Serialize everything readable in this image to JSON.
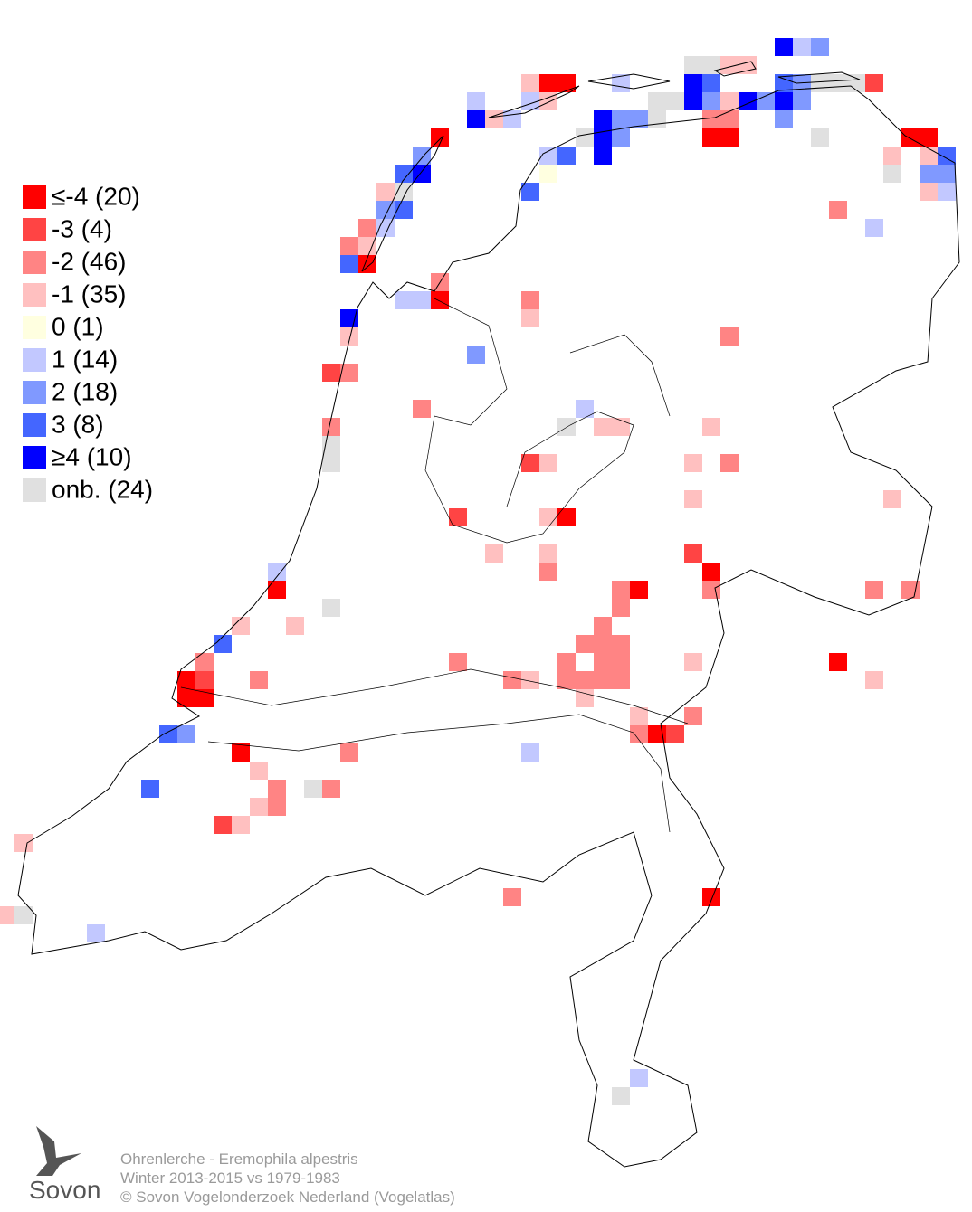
{
  "map": {
    "legend": [
      {
        "label": "≤-4 (20)",
        "color": "#ff0000"
      },
      {
        "label": "-3 (4)",
        "color": "#ff4444"
      },
      {
        "label": "-2 (46)",
        "color": "#ff8484"
      },
      {
        "label": "-1 (35)",
        "color": "#ffc0c0"
      },
      {
        "label": " 0 (1)",
        "color": "#ffffe0"
      },
      {
        "label": " 1 (14)",
        "color": "#c2c8ff"
      },
      {
        "label": " 2 (18)",
        "color": "#8099ff"
      },
      {
        "label": " 3 (8)",
        "color": "#4466ff"
      },
      {
        "label": "≥4 (10)",
        "color": "#0000ff"
      },
      {
        "label": "onb. (24)",
        "color": "#e0e0e0"
      }
    ],
    "cells": [
      [
        42,
        2,
        8
      ],
      [
        43,
        2,
        5
      ],
      [
        44,
        2,
        6
      ],
      [
        37,
        3,
        9
      ],
      [
        38,
        3,
        9
      ],
      [
        39,
        3,
        3
      ],
      [
        40,
        3,
        3
      ],
      [
        28,
        4,
        3
      ],
      [
        29,
        4,
        0
      ],
      [
        30,
        4,
        0
      ],
      [
        33,
        4,
        5
      ],
      [
        37,
        4,
        8
      ],
      [
        38,
        4,
        7
      ],
      [
        42,
        4,
        7
      ],
      [
        43,
        4,
        6
      ],
      [
        44,
        4,
        9
      ],
      [
        45,
        4,
        9
      ],
      [
        46,
        4,
        9
      ],
      [
        47,
        4,
        1
      ],
      [
        25,
        5,
        5
      ],
      [
        28,
        5,
        5
      ],
      [
        29,
        5,
        3
      ],
      [
        35,
        5,
        9
      ],
      [
        36,
        5,
        9
      ],
      [
        37,
        5,
        8
      ],
      [
        38,
        5,
        6
      ],
      [
        39,
        5,
        3
      ],
      [
        40,
        5,
        8
      ],
      [
        41,
        5,
        6
      ],
      [
        42,
        5,
        8
      ],
      [
        43,
        5,
        6
      ],
      [
        25,
        6,
        8
      ],
      [
        26,
        6,
        3
      ],
      [
        27,
        6,
        5
      ],
      [
        32,
        6,
        8
      ],
      [
        33,
        6,
        6
      ],
      [
        34,
        6,
        6
      ],
      [
        35,
        6,
        9
      ],
      [
        38,
        6,
        2
      ],
      [
        39,
        6,
        2
      ],
      [
        42,
        6,
        6
      ],
      [
        23,
        7,
        0
      ],
      [
        31,
        7,
        9
      ],
      [
        32,
        7,
        8
      ],
      [
        33,
        7,
        6
      ],
      [
        38,
        7,
        0
      ],
      [
        39,
        7,
        0
      ],
      [
        44,
        7,
        9
      ],
      [
        49,
        7,
        0
      ],
      [
        50,
        7,
        0
      ],
      [
        22,
        8,
        6
      ],
      [
        29,
        8,
        5
      ],
      [
        30,
        8,
        7
      ],
      [
        32,
        8,
        8
      ],
      [
        48,
        8,
        3
      ],
      [
        50,
        8,
        3
      ],
      [
        51,
        8,
        7
      ],
      [
        21,
        9,
        7
      ],
      [
        22,
        9,
        8
      ],
      [
        29,
        9,
        4
      ],
      [
        48,
        9,
        9
      ],
      [
        50,
        9,
        6
      ],
      [
        51,
        9,
        6
      ],
      [
        20,
        10,
        3
      ],
      [
        21,
        10,
        9
      ],
      [
        28,
        10,
        7
      ],
      [
        50,
        10,
        3
      ],
      [
        51,
        10,
        5
      ],
      [
        20,
        11,
        6
      ],
      [
        21,
        11,
        7
      ],
      [
        45,
        11,
        2
      ],
      [
        19,
        12,
        2
      ],
      [
        20,
        12,
        5
      ],
      [
        47,
        12,
        5
      ],
      [
        18,
        13,
        2
      ],
      [
        19,
        13,
        3
      ],
      [
        18,
        14,
        7
      ],
      [
        19,
        14,
        0
      ],
      [
        23,
        15,
        2
      ],
      [
        21,
        16,
        5
      ],
      [
        22,
        16,
        5
      ],
      [
        23,
        16,
        0
      ],
      [
        28,
        16,
        2
      ],
      [
        28,
        17,
        3
      ],
      [
        18,
        17,
        8
      ],
      [
        18,
        18,
        3
      ],
      [
        39,
        18,
        2
      ],
      [
        25,
        19,
        6
      ],
      [
        17,
        20,
        1
      ],
      [
        18,
        20,
        2
      ],
      [
        22,
        22,
        2
      ],
      [
        31,
        22,
        5
      ],
      [
        17,
        23,
        2
      ],
      [
        30,
        23,
        9
      ],
      [
        32,
        23,
        3
      ],
      [
        33,
        23,
        3
      ],
      [
        38,
        23,
        3
      ],
      [
        17,
        24,
        9
      ],
      [
        17,
        25,
        9
      ],
      [
        28,
        25,
        1
      ],
      [
        29,
        25,
        3
      ],
      [
        37,
        25,
        3
      ],
      [
        39,
        25,
        2
      ],
      [
        37,
        27,
        3
      ],
      [
        48,
        27,
        3
      ],
      [
        24,
        28,
        1
      ],
      [
        29,
        28,
        3
      ],
      [
        30,
        28,
        0
      ],
      [
        26,
        30,
        3
      ],
      [
        29,
        30,
        3
      ],
      [
        37,
        30,
        1
      ],
      [
        29,
        31,
        2
      ],
      [
        38,
        31,
        0
      ],
      [
        14,
        31,
        5
      ],
      [
        14,
        32,
        0
      ],
      [
        33,
        32,
        2
      ],
      [
        34,
        32,
        0
      ],
      [
        38,
        32,
        2
      ],
      [
        47,
        32,
        2
      ],
      [
        49,
        32,
        2
      ],
      [
        17,
        33,
        9
      ],
      [
        33,
        33,
        2
      ],
      [
        12,
        34,
        3
      ],
      [
        15,
        34,
        3
      ],
      [
        32,
        34,
        2
      ],
      [
        11,
        35,
        7
      ],
      [
        31,
        35,
        2
      ],
      [
        32,
        35,
        2
      ],
      [
        33,
        35,
        2
      ],
      [
        10,
        36,
        2
      ],
      [
        24,
        36,
        2
      ],
      [
        30,
        36,
        2
      ],
      [
        32,
        36,
        2
      ],
      [
        33,
        36,
        2
      ],
      [
        37,
        36,
        3
      ],
      [
        45,
        36,
        0
      ],
      [
        9,
        37,
        0
      ],
      [
        10,
        37,
        1
      ],
      [
        13,
        37,
        2
      ],
      [
        27,
        37,
        2
      ],
      [
        28,
        37,
        3
      ],
      [
        30,
        37,
        2
      ],
      [
        31,
        37,
        2
      ],
      [
        32,
        37,
        2
      ],
      [
        33,
        37,
        2
      ],
      [
        47,
        37,
        3
      ],
      [
        9,
        38,
        0
      ],
      [
        10,
        38,
        0
      ],
      [
        31,
        38,
        3
      ],
      [
        34,
        39,
        3
      ],
      [
        37,
        39,
        2
      ],
      [
        8,
        40,
        7
      ],
      [
        9,
        40,
        6
      ],
      [
        34,
        40,
        2
      ],
      [
        35,
        40,
        0
      ],
      [
        36,
        40,
        1
      ],
      [
        12,
        41,
        0
      ],
      [
        18,
        41,
        2
      ],
      [
        28,
        41,
        5
      ],
      [
        13,
        42,
        3
      ],
      [
        7,
        43,
        7
      ],
      [
        14,
        43,
        2
      ],
      [
        16,
        43,
        9
      ],
      [
        17,
        43,
        2
      ],
      [
        13,
        44,
        3
      ],
      [
        14,
        44,
        2
      ],
      [
        11,
        45,
        1
      ],
      [
        12,
        45,
        3
      ],
      [
        0,
        46,
        3
      ],
      [
        27,
        49,
        2
      ],
      [
        38,
        49,
        0
      ],
      [
        -1,
        50,
        3
      ],
      [
        0,
        50,
        9
      ],
      [
        4,
        51,
        5
      ],
      [
        34,
        59,
        5
      ],
      [
        33,
        60,
        9
      ]
    ],
    "credits": [
      "Ohrenlerche - Eremophila alpestris",
      "Winter 2013-2015 vs 1979-1983",
      "© Sovon Vogelonderzoek Nederland (Vogelatlas)"
    ],
    "logo": "Sovon"
  }
}
